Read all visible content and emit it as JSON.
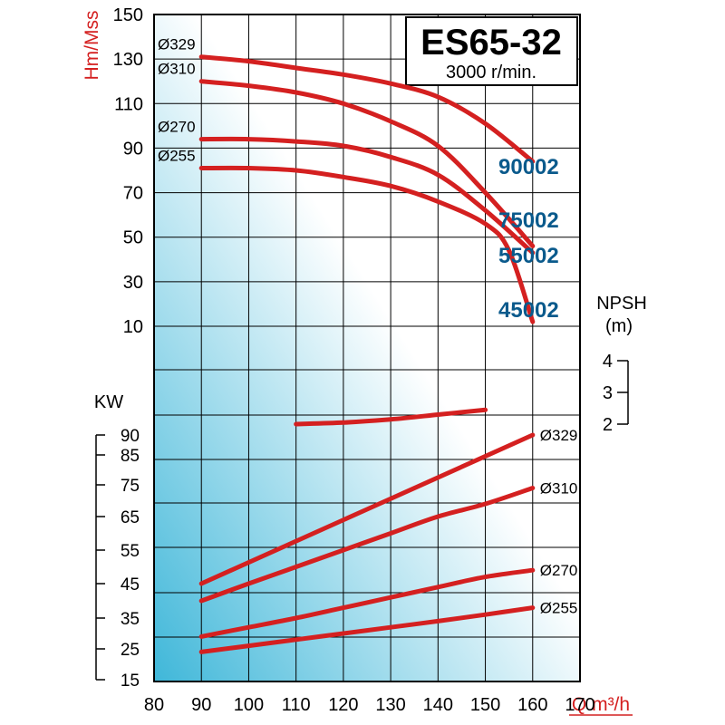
{
  "colors": {
    "curve": "#d42020",
    "model_label": "#0a5a8c",
    "axis_title_red": "#d42020",
    "grid": "#000000",
    "gradient_top": "#ffffff",
    "gradient_bottom": "#3fb7d9"
  },
  "chart_data": {
    "type": "line",
    "title": "ES65-32",
    "subtitle": "3000 r/min.",
    "xlabel": "Q m³/h",
    "x_ticks": [
      "80",
      "90",
      "100",
      "110",
      "120",
      "130",
      "140",
      "150",
      "160",
      "170"
    ],
    "x_range": [
      80,
      170
    ],
    "grid": true,
    "head": {
      "ylabel": "Hm/Mss",
      "y_ticks": [
        "150",
        "130",
        "110",
        "90",
        "70",
        "50",
        "30",
        "10"
      ],
      "y_range": [
        10,
        150
      ],
      "series": [
        {
          "name": "Ø329",
          "model": "90002",
          "points": [
            [
              90,
              131
            ],
            [
              100,
              129
            ],
            [
              110,
              126
            ],
            [
              120,
              123
            ],
            [
              130,
              119
            ],
            [
              140,
              113
            ],
            [
              150,
              101
            ],
            [
              160,
              84
            ]
          ]
        },
        {
          "name": "Ø310",
          "model": "75002",
          "points": [
            [
              90,
              120
            ],
            [
              100,
              118
            ],
            [
              110,
              115
            ],
            [
              120,
              110
            ],
            [
              130,
              102
            ],
            [
              140,
              91
            ],
            [
              150,
              70
            ],
            [
              160,
              46
            ]
          ]
        },
        {
          "name": "Ø270",
          "model": "55002",
          "points": [
            [
              90,
              94
            ],
            [
              100,
              94
            ],
            [
              110,
              93
            ],
            [
              120,
              91
            ],
            [
              130,
              86
            ],
            [
              140,
              78
            ],
            [
              150,
              62
            ],
            [
              160,
              43
            ]
          ]
        },
        {
          "name": "Ø255",
          "model": "45002",
          "points": [
            [
              90,
              81
            ],
            [
              100,
              81
            ],
            [
              110,
              80
            ],
            [
              120,
              77
            ],
            [
              130,
              73
            ],
            [
              140,
              66
            ],
            [
              150,
              56
            ],
            [
              155,
              44
            ],
            [
              160,
              12
            ]
          ]
        }
      ]
    },
    "npsh": {
      "ylabel": "NPSH",
      "unit": "(m)",
      "y_ticks": [
        "4",
        "3",
        "2"
      ],
      "y_range": [
        2,
        4
      ],
      "series": [
        {
          "name": "NPSH",
          "points": [
            [
              110,
              2.0
            ],
            [
              120,
              2.05
            ],
            [
              130,
              2.15
            ],
            [
              140,
              2.3
            ],
            [
              150,
              2.45
            ]
          ]
        }
      ]
    },
    "power": {
      "ylabel": "KW",
      "y_ticks": [
        "90",
        "85",
        "75",
        "65",
        "55",
        "45",
        "35",
        "25",
        "15"
      ],
      "series": [
        {
          "name": "Ø329",
          "points": [
            [
              90,
              45
            ],
            [
              160,
              90
            ]
          ]
        },
        {
          "name": "Ø310",
          "points": [
            [
              90,
              40
            ],
            [
              100,
              45
            ],
            [
              110,
              50
            ],
            [
              120,
              55
            ],
            [
              130,
              60
            ],
            [
              140,
              65
            ],
            [
              150,
              69
            ],
            [
              160,
              74
            ]
          ]
        },
        {
          "name": "Ø270",
          "points": [
            [
              90,
              29
            ],
            [
              100,
              32
            ],
            [
              110,
              35
            ],
            [
              120,
              38
            ],
            [
              130,
              41
            ],
            [
              140,
              44
            ],
            [
              150,
              47
            ],
            [
              160,
              49
            ]
          ]
        },
        {
          "name": "Ø255",
          "points": [
            [
              90,
              24
            ],
            [
              100,
              26
            ],
            [
              110,
              28
            ],
            [
              120,
              30
            ],
            [
              130,
              32
            ],
            [
              140,
              34
            ],
            [
              150,
              36
            ],
            [
              160,
              38
            ]
          ]
        }
      ]
    }
  }
}
